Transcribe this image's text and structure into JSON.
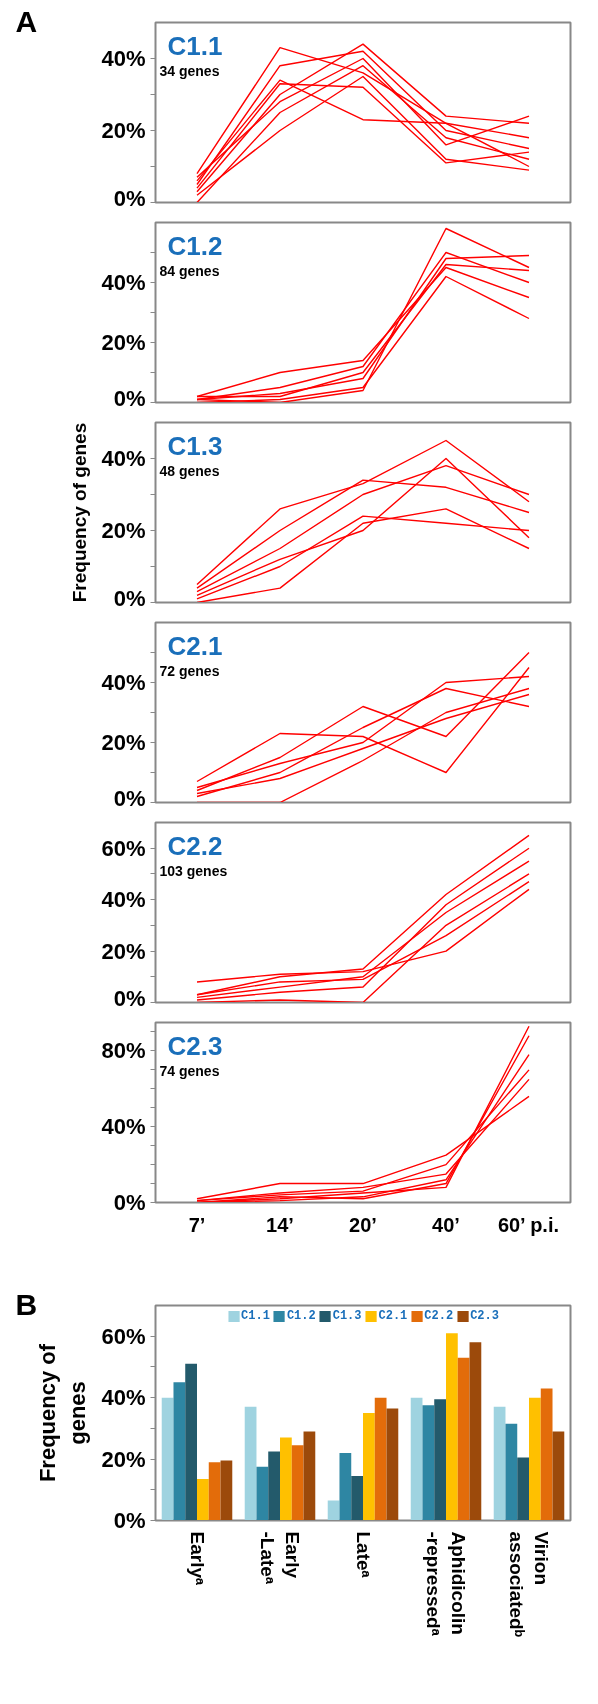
{
  "chart_data": [
    {
      "type": "line",
      "title": "C1.1",
      "subtitle": "34 genes",
      "annotations": [
        "A"
      ],
      "categories": [
        null,
        null,
        null,
        null,
        null
      ],
      "tick_labels": "y",
      "ylim": [
        0,
        50
      ],
      "yticks": [
        {
          "value": 0,
          "label": "0%"
        },
        {
          "value": 10,
          "label": null
        },
        {
          "value": 20,
          "label": "20%"
        },
        {
          "value": 30,
          "label": null
        },
        {
          "value": 40,
          "label": "40%"
        }
      ],
      "grid": false,
      "line_style": "solid",
      "marker": "none",
      "series": [
        {
          "color": "#ff0000",
          "values": [
            8,
            43,
            36,
            22,
            18
          ]
        },
        {
          "color": "#ff0000",
          "values": [
            5,
            38,
            42,
            20,
            15
          ]
        },
        {
          "color": "#ff0000",
          "values": [
            3,
            30,
            44,
            24,
            22
          ]
        },
        {
          "color": "#ff0000",
          "values": [
            0,
            25,
            38,
            18,
            12
          ]
        },
        {
          "color": "#ff0000",
          "values": [
            6,
            34,
            23,
            22,
            10
          ]
        },
        {
          "color": "#ff0000",
          "values": [
            2,
            20,
            35,
            12,
            9
          ]
        },
        {
          "color": "#ff0000",
          "values": [
            7,
            28,
            40,
            16,
            24
          ]
        },
        {
          "color": "#ff0000",
          "values": [
            4,
            33,
            32,
            11,
            14
          ]
        }
      ]
    },
    {
      "type": "line",
      "title": "C1.2",
      "subtitle": "84 genes",
      "categories": [
        null,
        null,
        null,
        null,
        null
      ],
      "tick_labels": "y",
      "ylim": [
        0,
        60
      ],
      "yticks": [
        {
          "value": 0,
          "label": "0%"
        },
        {
          "value": 10,
          "label": null
        },
        {
          "value": 20,
          "label": "20%"
        },
        {
          "value": 30,
          "label": null
        },
        {
          "value": 40,
          "label": "40%"
        },
        {
          "value": 50,
          "label": null
        }
      ],
      "grid": false,
      "line_style": "solid",
      "marker": "none",
      "series": [
        {
          "color": "#ff0000",
          "values": [
            1,
            0,
            4,
            58,
            45
          ]
        },
        {
          "color": "#ff0000",
          "values": [
            2,
            10,
            14,
            45,
            35
          ]
        },
        {
          "color": "#ff0000",
          "values": [
            1,
            3,
            8,
            48,
            49
          ]
        },
        {
          "color": "#ff0000",
          "values": [
            0,
            1,
            5,
            42,
            28
          ]
        },
        {
          "color": "#ff0000",
          "values": [
            1,
            5,
            12,
            50,
            40
          ]
        },
        {
          "color": "#ff0000",
          "values": [
            2,
            2,
            10,
            46,
            44
          ]
        }
      ]
    },
    {
      "type": "line",
      "title": "C1.3",
      "subtitle": "48 genes",
      "ylabel": "Frequency of genes",
      "categories": [
        null,
        null,
        null,
        null,
        null
      ],
      "tick_labels": "y",
      "ylim": [
        0,
        50
      ],
      "yticks": [
        {
          "value": 0,
          "label": "0%"
        },
        {
          "value": 10,
          "label": null
        },
        {
          "value": 20,
          "label": "20%"
        },
        {
          "value": 30,
          "label": null
        },
        {
          "value": 40,
          "label": "40%"
        }
      ],
      "grid": false,
      "line_style": "solid",
      "marker": "none",
      "series": [
        {
          "color": "#ff0000",
          "values": [
            5,
            26,
            33,
            45,
            28
          ]
        },
        {
          "color": "#ff0000",
          "values": [
            0,
            4,
            22,
            26,
            15
          ]
        },
        {
          "color": "#ff0000",
          "values": [
            3,
            15,
            30,
            38,
            30
          ]
        },
        {
          "color": "#ff0000",
          "values": [
            1,
            10,
            24,
            22,
            20
          ]
        },
        {
          "color": "#ff0000",
          "values": [
            4,
            20,
            34,
            32,
            25
          ]
        },
        {
          "color": "#ff0000",
          "values": [
            2,
            12,
            20,
            40,
            18
          ]
        }
      ]
    },
    {
      "type": "line",
      "title": "C2.1",
      "subtitle": "72 genes",
      "categories": [
        null,
        null,
        null,
        null,
        null
      ],
      "tick_labels": "y",
      "ylim": [
        0,
        60
      ],
      "yticks": [
        {
          "value": 0,
          "label": "0%"
        },
        {
          "value": 10,
          "label": null
        },
        {
          "value": 20,
          "label": "20%"
        },
        {
          "value": 30,
          "label": null
        },
        {
          "value": 40,
          "label": "40%"
        },
        {
          "value": 50,
          "label": null
        }
      ],
      "grid": false,
      "line_style": "solid",
      "marker": "none",
      "series": [
        {
          "color": "#ff0000",
          "values": [
            7,
            23,
            22,
            10,
            45
          ]
        },
        {
          "color": "#ff0000",
          "values": [
            0,
            0,
            14,
            30,
            38
          ]
        },
        {
          "color": "#ff0000",
          "values": [
            4,
            15,
            32,
            22,
            50
          ]
        },
        {
          "color": "#ff0000",
          "values": [
            2,
            10,
            25,
            38,
            32
          ]
        },
        {
          "color": "#ff0000",
          "values": [
            5,
            13,
            20,
            40,
            42
          ]
        },
        {
          "color": "#ff0000",
          "values": [
            3,
            8,
            18,
            28,
            36
          ]
        }
      ]
    },
    {
      "type": "line",
      "title": "C2.2",
      "subtitle": "103 genes",
      "categories": [
        null,
        null,
        null,
        null,
        null
      ],
      "tick_labels": "y",
      "ylim": [
        0,
        70
      ],
      "yticks": [
        {
          "value": 0,
          "label": "0%"
        },
        {
          "value": 10,
          "label": null
        },
        {
          "value": 20,
          "label": "20%"
        },
        {
          "value": 30,
          "label": null
        },
        {
          "value": 40,
          "label": "40%"
        },
        {
          "value": 50,
          "label": null
        },
        {
          "value": 60,
          "label": "60%"
        }
      ],
      "grid": false,
      "line_style": "solid",
      "marker": "none",
      "series": [
        {
          "color": "#ff0000",
          "values": [
            8,
            11,
            12,
            20,
            44
          ]
        },
        {
          "color": "#ff0000",
          "values": [
            3,
            10,
            13,
            42,
            65
          ]
        },
        {
          "color": "#ff0000",
          "values": [
            0,
            1,
            0,
            30,
            50
          ]
        },
        {
          "color": "#ff0000",
          "values": [
            2,
            6,
            10,
            35,
            55
          ]
        },
        {
          "color": "#ff0000",
          "values": [
            1,
            4,
            6,
            38,
            60
          ]
        },
        {
          "color": "#ff0000",
          "values": [
            3,
            8,
            9,
            26,
            47
          ]
        }
      ]
    },
    {
      "type": "line",
      "title": "C2.3",
      "subtitle": "74 genes",
      "categories": [
        "7’",
        "14’",
        "20’",
        "40’",
        "60’ p.i."
      ],
      "ylim": [
        0,
        95
      ],
      "yticks": [
        {
          "value": 0,
          "label": "0%"
        },
        {
          "value": 10,
          "label": null
        },
        {
          "value": 20,
          "label": null
        },
        {
          "value": 30,
          "label": null
        },
        {
          "value": 40,
          "label": "40%"
        },
        {
          "value": 50,
          "label": null
        },
        {
          "value": 60,
          "label": null
        },
        {
          "value": 70,
          "label": null
        },
        {
          "value": 80,
          "label": "80%"
        },
        {
          "value": 90,
          "label": null
        }
      ],
      "grid": false,
      "line_style": "solid",
      "marker": "none",
      "series": [
        {
          "color": "#ff0000",
          "values": [
            2,
            10,
            10,
            25,
            56
          ]
        },
        {
          "color": "#ff0000",
          "values": [
            0,
            2,
            5,
            8,
            93
          ]
        },
        {
          "color": "#ff0000",
          "values": [
            1,
            4,
            6,
            20,
            70
          ]
        },
        {
          "color": "#ff0000",
          "values": [
            0,
            3,
            2,
            10,
            88
          ]
        },
        {
          "color": "#ff0000",
          "values": [
            1,
            5,
            8,
            15,
            65
          ]
        },
        {
          "color": "#ff0000",
          "values": [
            0,
            1,
            3,
            12,
            78
          ]
        }
      ]
    },
    {
      "type": "bar",
      "ylabel": "Frequency of\ngenes",
      "annotations": [
        "B"
      ],
      "categories": [
        "Earlyᵃ",
        "Early\n-Lateᵃ",
        "Lateᵃ",
        "Aphidicolin\n-repressedᵃ",
        "Virion\nassociatedᵇ"
      ],
      "ylim": [
        0,
        70
      ],
      "yticks": [
        {
          "value": 0,
          "label": "0%"
        },
        {
          "value": 10,
          "label": null
        },
        {
          "value": 20,
          "label": "20%"
        },
        {
          "value": 30,
          "label": null
        },
        {
          "value": 40,
          "label": "40%"
        },
        {
          "value": 50,
          "label": null
        },
        {
          "value": 60,
          "label": "60%"
        }
      ],
      "grid": false,
      "legend": "top",
      "series": [
        {
          "name": "C1.1",
          "color": "#9fd3e0",
          "values": [
            40,
            37,
            6.5,
            40,
            37
          ]
        },
        {
          "name": "C1.2",
          "color": "#2e86a3",
          "values": [
            45,
            17.5,
            22,
            37.5,
            31.5
          ]
        },
        {
          "name": "C1.3",
          "color": "#235a6b",
          "values": [
            51,
            22.5,
            14.5,
            39.5,
            20.5
          ]
        },
        {
          "name": "C2.1",
          "color": "#ffc000",
          "values": [
            13.5,
            27,
            35,
            61,
            40
          ]
        },
        {
          "name": "C2.2",
          "color": "#e36c0a",
          "values": [
            19,
            24.5,
            40,
            53,
            43
          ]
        },
        {
          "name": "C2.3",
          "color": "#9c4a0b",
          "values": [
            19.5,
            29,
            36.5,
            58,
            29
          ]
        }
      ]
    }
  ]
}
